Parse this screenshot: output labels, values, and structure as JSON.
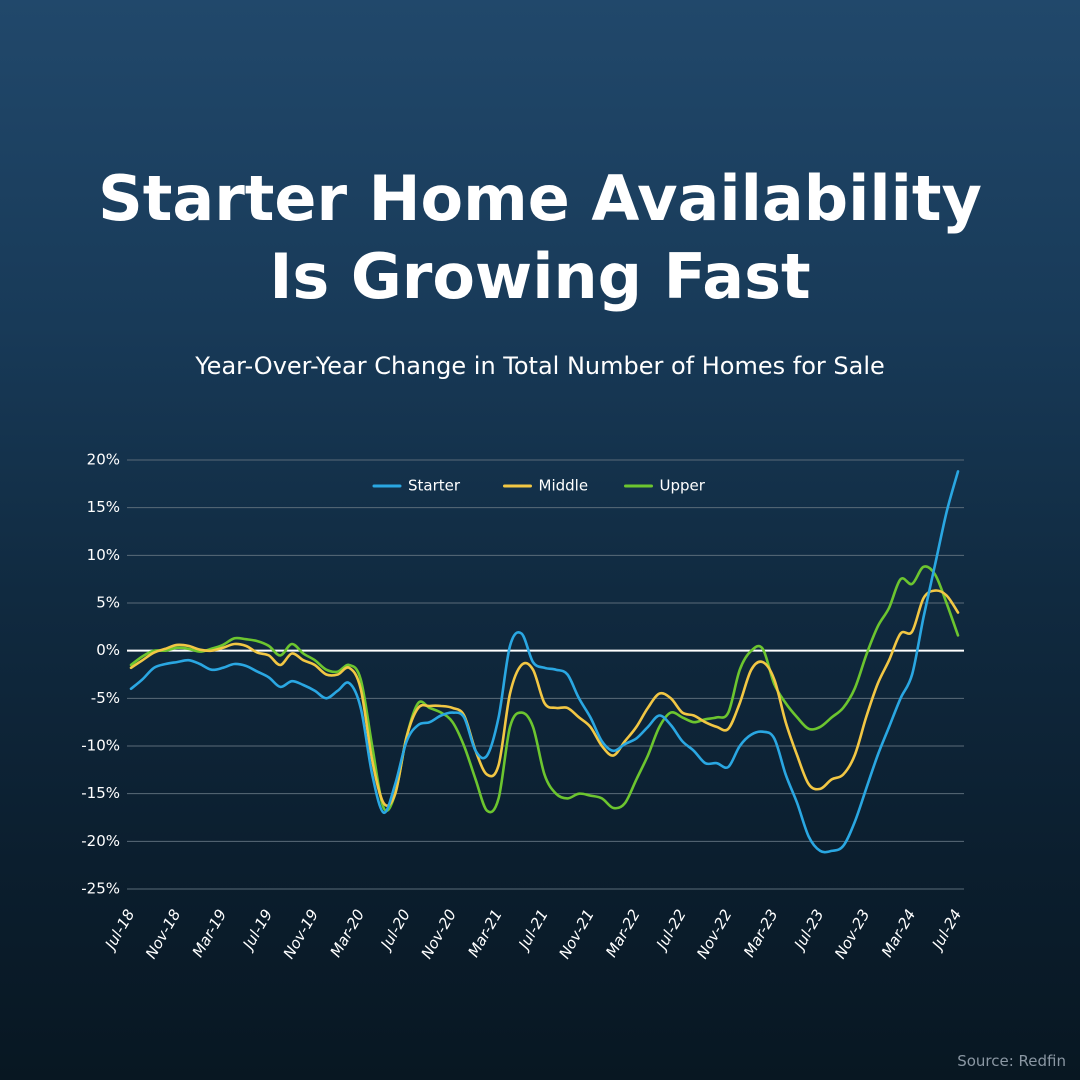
{
  "chart_data": {
    "type": "line",
    "title": "Starter Home Availability Is Growing Fast",
    "subtitle": "Year-Over-Year Change in Total Number of Homes for Sale",
    "source": "Source: Redfin",
    "categories": [
      "Jul-18",
      null,
      null,
      null,
      "Nov-18",
      null,
      null,
      null,
      "Mar-19",
      null,
      null,
      null,
      "Jul-19",
      null,
      null,
      null,
      "Nov-19",
      null,
      null,
      null,
      "Mar-20",
      null,
      null,
      null,
      "Jul-20",
      null,
      null,
      null,
      "Nov-20",
      null,
      null,
      null,
      "Mar-21",
      null,
      null,
      null,
      "Jul-21",
      null,
      null,
      null,
      "Nov-21",
      null,
      null,
      null,
      "Mar-22",
      null,
      null,
      null,
      "Jul-22",
      null,
      null,
      null,
      "Nov-22",
      null,
      null,
      null,
      "Mar-23",
      null,
      null,
      null,
      "Jul-23",
      null,
      null,
      null,
      "Nov-23",
      null,
      null,
      null,
      "Mar-24",
      null,
      null,
      null,
      "Jul-24"
    ],
    "series": [
      {
        "name": "Starter",
        "color": "#2aa7e2",
        "values": [
          -4.0,
          -3.0,
          -1.8,
          -1.4,
          -1.2,
          -1.0,
          -1.4,
          -2.0,
          -1.8,
          -1.4,
          -1.6,
          -2.2,
          -2.8,
          -3.8,
          -3.2,
          -3.6,
          -4.2,
          -5.0,
          -4.2,
          -3.4,
          -6.0,
          -13.0,
          -17.0,
          -14.0,
          -9.5,
          -7.8,
          -7.5,
          -6.8,
          -6.5,
          -7.0,
          -10.5,
          -11.0,
          -7.0,
          0.5,
          1.8,
          -1.2,
          -1.8,
          -2.0,
          -2.5,
          -5.0,
          -7.0,
          -9.5,
          -10.5,
          -9.8,
          -9.2,
          -8.0,
          -6.8,
          -7.8,
          -9.5,
          -10.5,
          -11.8,
          -11.8,
          -12.2,
          -10.0,
          -8.8,
          -8.5,
          -9.2,
          -13.0,
          -16.0,
          -19.5,
          -21.0,
          -21.0,
          -20.5,
          -18.0,
          -14.5,
          -11.0,
          -8.0,
          -5.0,
          -2.5,
          3.5,
          9.0,
          14.5,
          18.8
        ]
      },
      {
        "name": "Middle",
        "color": "#f2c744",
        "values": [
          -1.8,
          -1.0,
          -0.2,
          0.2,
          0.6,
          0.5,
          0.1,
          0.0,
          0.3,
          0.7,
          0.5,
          -0.2,
          -0.5,
          -1.5,
          -0.3,
          -1.0,
          -1.5,
          -2.5,
          -2.5,
          -1.8,
          -4.0,
          -11.5,
          -16.0,
          -15.0,
          -9.0,
          -6.0,
          -5.8,
          -5.8,
          -6.0,
          -6.8,
          -10.5,
          -13.0,
          -12.0,
          -4.5,
          -1.5,
          -2.0,
          -5.5,
          -6.0,
          -6.0,
          -7.0,
          -8.0,
          -10.0,
          -11.0,
          -9.5,
          -8.0,
          -6.0,
          -4.5,
          -5.0,
          -6.5,
          -6.8,
          -7.5,
          -8.0,
          -8.2,
          -5.5,
          -2.0,
          -1.2,
          -3.0,
          -7.5,
          -11.0,
          -14.0,
          -14.5,
          -13.5,
          -13.0,
          -11.0,
          -7.0,
          -3.5,
          -1.0,
          1.8,
          2.0,
          5.5,
          6.3,
          5.8,
          4.0
        ]
      },
      {
        "name": "Upper",
        "color": "#6cc52f",
        "values": [
          -1.5,
          -0.6,
          0.0,
          0.0,
          0.3,
          0.2,
          -0.1,
          0.2,
          0.6,
          1.3,
          1.2,
          1.0,
          0.5,
          -0.5,
          0.7,
          -0.3,
          -1.0,
          -2.0,
          -2.2,
          -1.5,
          -3.0,
          -10.0,
          -16.5,
          -15.0,
          -9.0,
          -5.5,
          -6.0,
          -6.5,
          -7.5,
          -10.0,
          -13.5,
          -16.8,
          -15.5,
          -8.0,
          -6.5,
          -8.0,
          -13.0,
          -15.0,
          -15.5,
          -15.0,
          -15.2,
          -15.5,
          -16.5,
          -16.0,
          -13.5,
          -11.0,
          -8.0,
          -6.5,
          -7.0,
          -7.5,
          -7.2,
          -7.0,
          -6.5,
          -2.0,
          0.0,
          0.2,
          -3.5,
          -5.5,
          -7.0,
          -8.2,
          -8.0,
          -7.0,
          -6.0,
          -4.0,
          -0.5,
          2.5,
          4.5,
          7.5,
          7.0,
          8.8,
          8.0,
          5.0,
          1.6
        ]
      }
    ],
    "ylim": [
      -25,
      20
    ],
    "yticks": [
      {
        "value": -25,
        "label": "-25%"
      },
      {
        "value": -20,
        "label": "-20%"
      },
      {
        "value": -15,
        "label": "-15%"
      },
      {
        "value": -10,
        "label": "-10%"
      },
      {
        "value": -5,
        "label": "-5%"
      },
      {
        "value": 0,
        "label": "0%"
      },
      {
        "value": 5,
        "label": "5%"
      },
      {
        "value": 10,
        "label": "10%"
      },
      {
        "value": 15,
        "label": "15%"
      },
      {
        "value": 20,
        "label": "20%"
      }
    ],
    "grid": true,
    "legend": "top"
  }
}
